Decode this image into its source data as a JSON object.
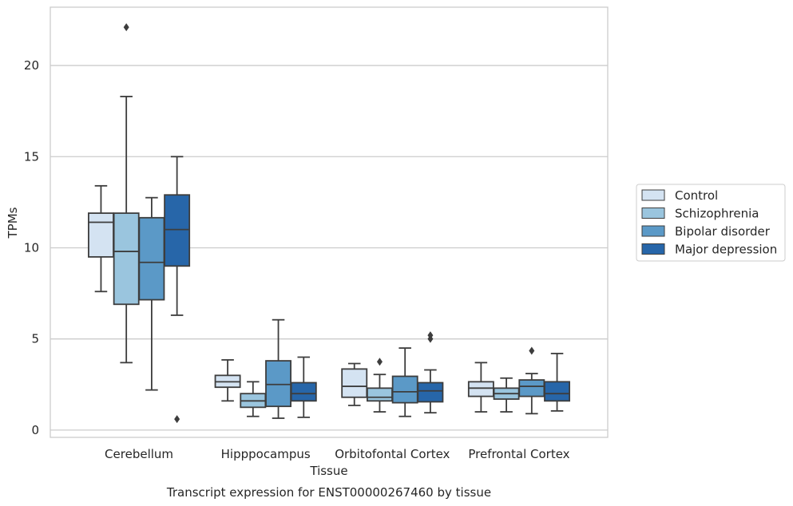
{
  "chart_data": {
    "type": "box",
    "title": "",
    "caption": "Transcript expression for ENST00000267460 by tissue",
    "xlabel": "Tissue",
    "ylabel": "TPMs",
    "ylim": [
      -0.4,
      23.2
    ],
    "yticks": [
      0,
      5,
      10,
      15,
      20
    ],
    "grid": "horizontal",
    "legend_placement": "right",
    "categories": [
      "Cerebellum",
      "Hipppocampus",
      "Orbitofontal Cortex",
      "Prefrontal Cortex"
    ],
    "series": [
      {
        "name": "Control",
        "color": "#d4e3f2",
        "boxes": [
          {
            "whislo": 7.6,
            "q1": 9.5,
            "med": 11.4,
            "q3": 11.9,
            "whishi": 13.4,
            "fliers": []
          },
          {
            "whislo": 1.6,
            "q1": 2.35,
            "med": 2.65,
            "q3": 3.0,
            "whishi": 3.85,
            "fliers": []
          },
          {
            "whislo": 1.35,
            "q1": 1.8,
            "med": 2.4,
            "q3": 3.35,
            "whishi": 3.65,
            "fliers": []
          },
          {
            "whislo": 1.0,
            "q1": 1.85,
            "med": 2.3,
            "q3": 2.65,
            "whishi": 3.7,
            "fliers": []
          }
        ]
      },
      {
        "name": "Schizophrenia",
        "color": "#9ac5de",
        "boxes": [
          {
            "whislo": 3.7,
            "q1": 6.9,
            "med": 9.8,
            "q3": 11.9,
            "whishi": 18.3,
            "fliers": [
              22.1
            ]
          },
          {
            "whislo": 0.75,
            "q1": 1.25,
            "med": 1.6,
            "q3": 2.0,
            "whishi": 2.65,
            "fliers": []
          },
          {
            "whislo": 1.0,
            "q1": 1.6,
            "med": 1.8,
            "q3": 2.3,
            "whishi": 3.05,
            "fliers": [
              3.75
            ]
          },
          {
            "whislo": 1.0,
            "q1": 1.7,
            "med": 2.0,
            "q3": 2.3,
            "whishi": 2.85,
            "fliers": []
          }
        ]
      },
      {
        "name": "Bipolar disorder",
        "color": "#5b99c7",
        "boxes": [
          {
            "whislo": 2.2,
            "q1": 7.15,
            "med": 9.2,
            "q3": 11.65,
            "whishi": 12.75,
            "fliers": []
          },
          {
            "whislo": 0.65,
            "q1": 1.3,
            "med": 2.5,
            "q3": 3.8,
            "whishi": 6.05,
            "fliers": []
          },
          {
            "whislo": 0.75,
            "q1": 1.5,
            "med": 2.1,
            "q3": 2.95,
            "whishi": 4.5,
            "fliers": []
          },
          {
            "whislo": 0.9,
            "q1": 1.85,
            "med": 2.4,
            "q3": 2.75,
            "whishi": 3.1,
            "fliers": [
              4.35
            ]
          }
        ]
      },
      {
        "name": "Major depression",
        "color": "#2766a9",
        "boxes": [
          {
            "whislo": 6.3,
            "q1": 9.0,
            "med": 11.0,
            "q3": 12.9,
            "whishi": 15.0,
            "fliers": [
              0.6
            ]
          },
          {
            "whislo": 0.7,
            "q1": 1.6,
            "med": 2.0,
            "q3": 2.6,
            "whishi": 4.0,
            "fliers": []
          },
          {
            "whislo": 0.95,
            "q1": 1.55,
            "med": 2.15,
            "q3": 2.6,
            "whishi": 3.3,
            "fliers": [
              5.0,
              5.2
            ]
          },
          {
            "whislo": 1.05,
            "q1": 1.6,
            "med": 2.0,
            "q3": 2.65,
            "whishi": 4.2,
            "fliers": []
          }
        ]
      }
    ]
  }
}
